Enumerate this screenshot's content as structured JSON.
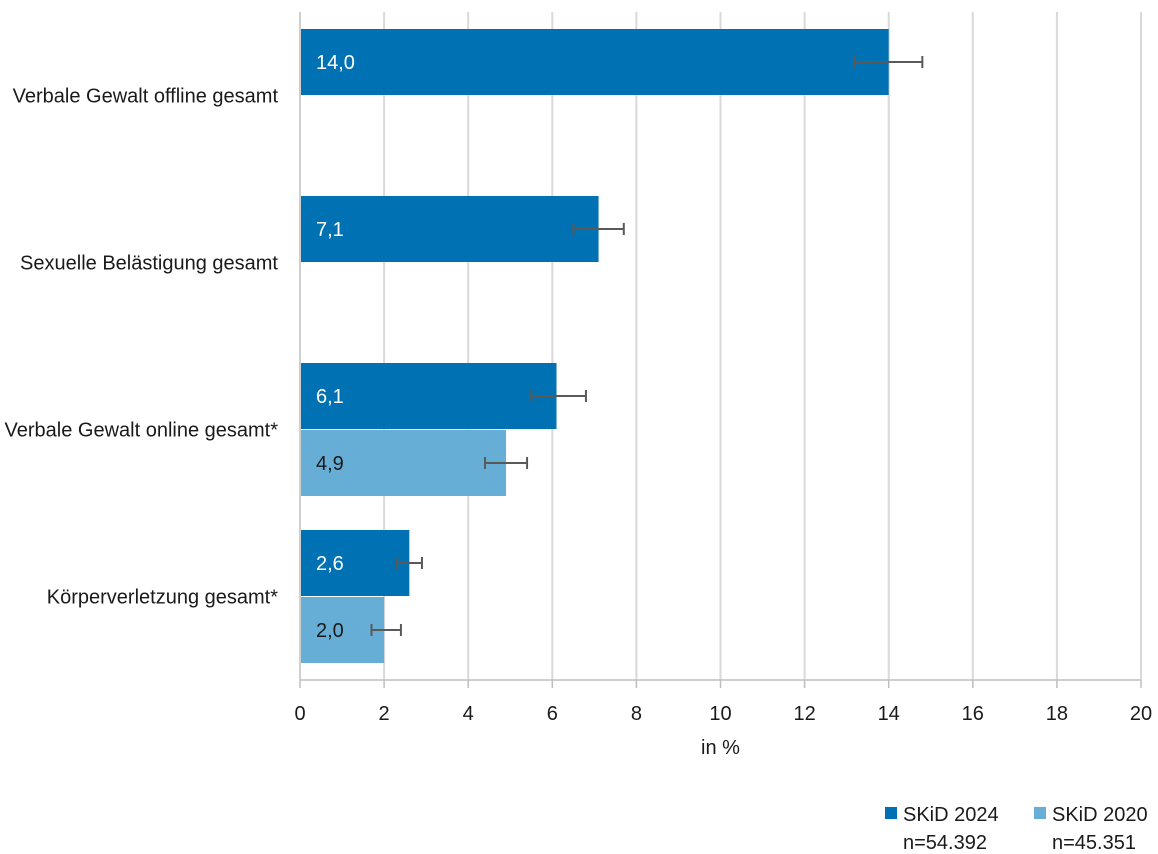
{
  "chart_data": {
    "type": "bar",
    "orientation": "horizontal",
    "title": "",
    "xlabel": "in %",
    "ylabel": "",
    "xlim": [
      0,
      20
    ],
    "x_ticks": [
      "0",
      "2",
      "4",
      "6",
      "8",
      "10",
      "12",
      "14",
      "16",
      "18",
      "20"
    ],
    "grid": "vertical",
    "legend_position": "bottom-right",
    "categories": [
      "Verbale Gewalt offline gesamt",
      "Sexuelle Belästigung gesamt",
      "Verbale Gewalt online gesamt*",
      "Körperverletzung gesamt*"
    ],
    "series": [
      {
        "name": "SKiD 2024",
        "sample": "n=54.392",
        "color": "#0072b3",
        "label_color": "#ffffff",
        "values": [
          14.0,
          7.1,
          6.1,
          2.6
        ],
        "value_labels": [
          "14,0",
          "7,1",
          "6,1",
          "2,6"
        ],
        "ci_low": [
          13.2,
          6.5,
          5.5,
          2.3
        ],
        "ci_high": [
          14.8,
          7.7,
          6.8,
          2.9
        ]
      },
      {
        "name": "SKiD 2020",
        "sample": "n=45.351",
        "color": "#67aed6",
        "label_color": "#1a1a1a",
        "values": [
          null,
          null,
          4.9,
          2.0
        ],
        "value_labels": [
          "",
          "",
          "4,9",
          "2,0"
        ],
        "ci_low": [
          null,
          null,
          4.4,
          1.7
        ],
        "ci_high": [
          null,
          null,
          5.4,
          2.4
        ]
      }
    ]
  }
}
